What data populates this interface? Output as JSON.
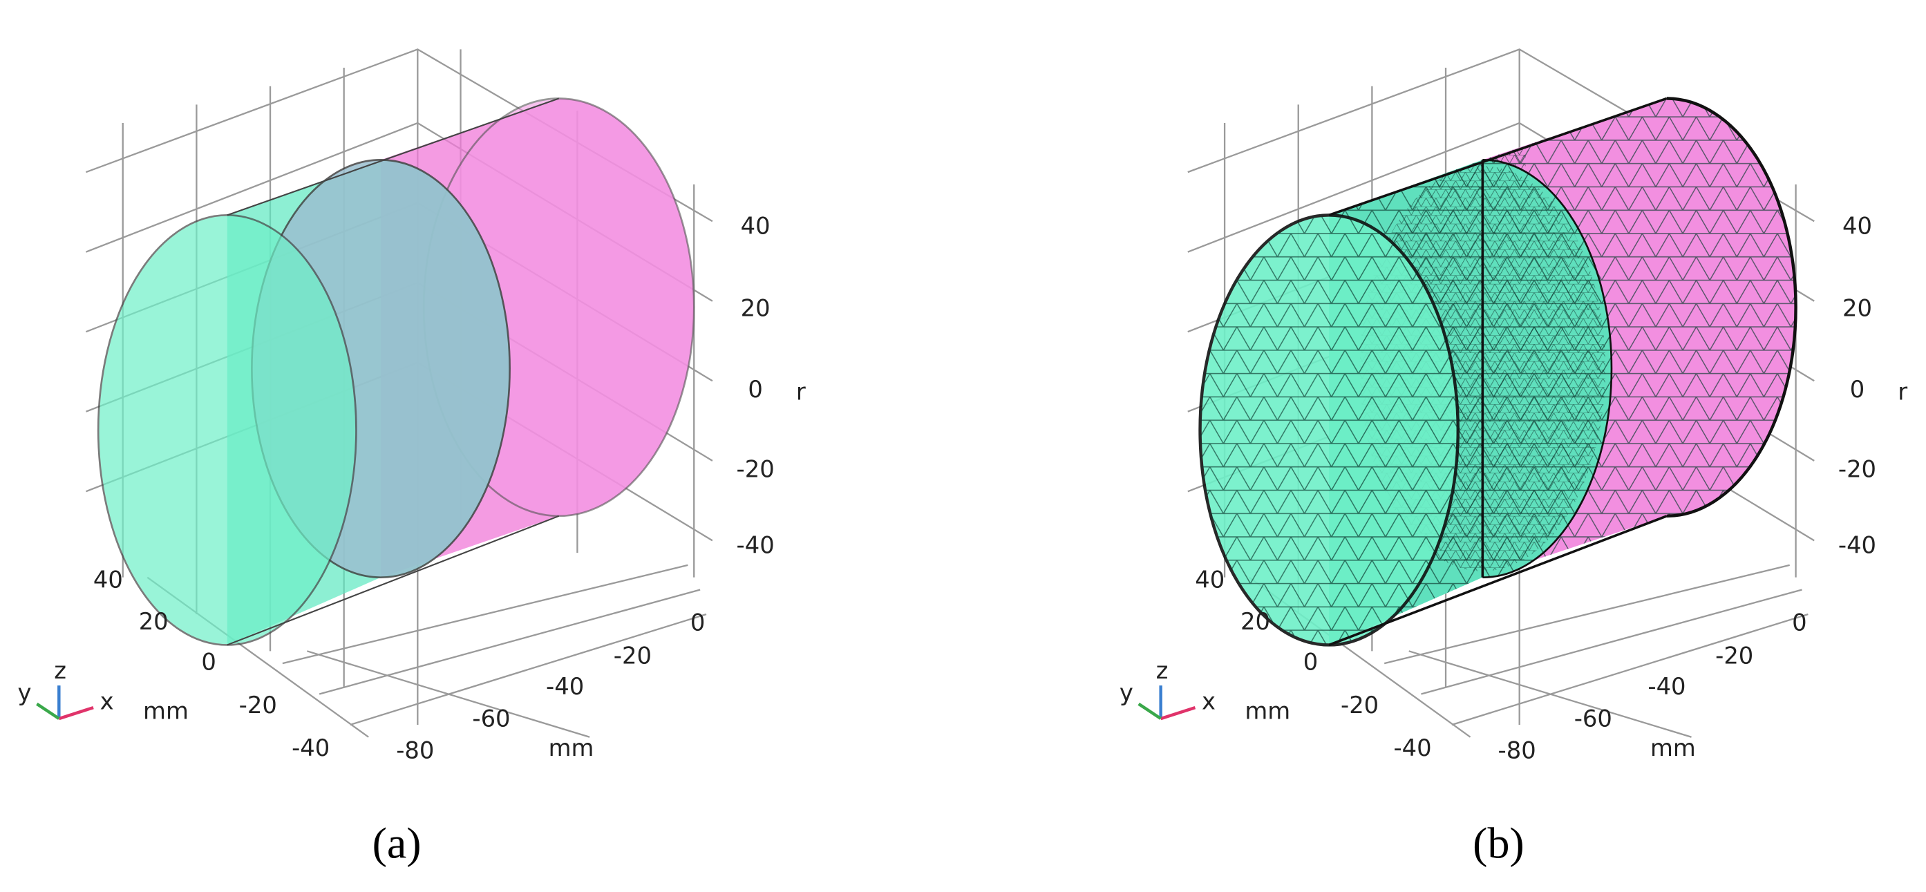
{
  "panels": [
    {
      "caption": "(a)",
      "r_axis": {
        "ticks": [
          "40",
          "20",
          "0",
          "-20",
          "-40"
        ],
        "label": "r"
      },
      "y_axis": {
        "ticks": [
          "40",
          "20",
          "0",
          "-20",
          "-40"
        ],
        "label": "mm"
      },
      "x_axis": {
        "ticks": [
          "0",
          "-20",
          "-40",
          "-60",
          "-80"
        ],
        "label": "mm"
      },
      "triad": {
        "x": "x",
        "y": "y",
        "z": "z"
      }
    },
    {
      "caption": "(b)",
      "r_axis": {
        "ticks": [
          "40",
          "20",
          "0",
          "-20",
          "-40"
        ],
        "label": "r"
      },
      "y_axis": {
        "ticks": [
          "40",
          "20",
          "0",
          "-20",
          "-40"
        ],
        "label": "mm"
      },
      "x_axis": {
        "ticks": [
          "0",
          "-20",
          "-40",
          "-60",
          "-80"
        ],
        "label": "mm"
      },
      "triad": {
        "x": "x",
        "y": "y",
        "z": "z"
      }
    }
  ]
}
